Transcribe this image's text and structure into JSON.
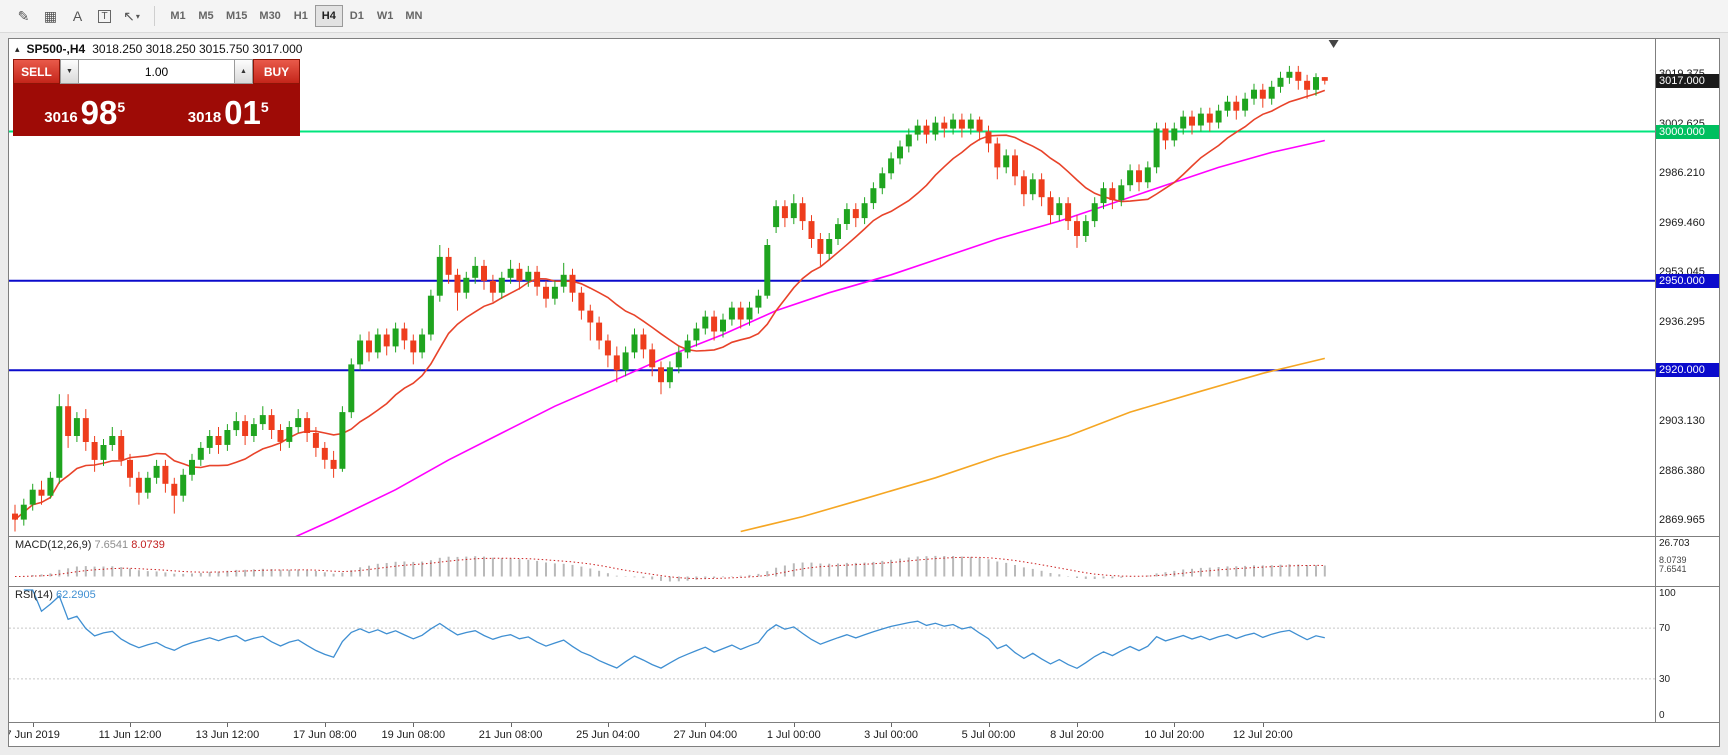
{
  "toolbar": {
    "icons": [
      {
        "name": "chart-pencil-icon",
        "glyph": "✎"
      },
      {
        "name": "grid-icon",
        "glyph": "▦"
      },
      {
        "name": "text-label-icon",
        "glyph": "A"
      },
      {
        "name": "text-box-icon",
        "glyph": "T",
        "boxed": true
      },
      {
        "name": "cursor-tool-icon",
        "glyph": "↖",
        "caret": "▾"
      }
    ],
    "timeframes": [
      "M1",
      "M5",
      "M15",
      "M30",
      "H1",
      "H4",
      "D1",
      "W1",
      "MN"
    ],
    "active_timeframe": "H4"
  },
  "chart_header": {
    "marker": "▴",
    "symbol_tf": "SP500-,H4",
    "ohlc": "3018.250 3018.250 3015.750 3017.000"
  },
  "trade_panel": {
    "sell_label": "SELL",
    "buy_label": "BUY",
    "volume": "1.00",
    "spinner_down": "▼",
    "spinner_up": "▲",
    "bid": {
      "prefix": "3016",
      "big": "98",
      "sup": "5"
    },
    "ask": {
      "prefix": "3018",
      "big": "01",
      "sup": "5"
    }
  },
  "macd_label": {
    "name": "MACD(12,26,9)",
    "value_main": "7.6541",
    "value_signal": "8.0739"
  },
  "rsi_label": {
    "name": "RSI(14)",
    "value": "62.2905"
  },
  "chart_data": {
    "type": "candlestick",
    "symbol": "SP500-",
    "timeframe": "H4",
    "current_ohlc": {
      "open": "3018.250",
      "high": "3018.250",
      "low": "3015.750",
      "close": "3017.000"
    },
    "price_range": {
      "top": 3031,
      "bottom": 2864.5
    },
    "price_ticks": [
      3019.375,
      3002.625,
      2986.21,
      2969.46,
      2953.045,
      2936.295,
      2903.13,
      2886.38,
      2869.965
    ],
    "price_badges": [
      {
        "price": 3017.0,
        "label": "3017.000",
        "color": "#1a1a1a"
      },
      {
        "price": 3000.0,
        "label": "3000.000",
        "color": "#00bf5f"
      },
      {
        "price": 2950.0,
        "label": "2950.000",
        "color": "#0b0bcc"
      },
      {
        "price": 2920.0,
        "label": "2920.000",
        "color": "#0b0bcc"
      }
    ],
    "levels": [
      {
        "price": 3000.0,
        "color": "#00e57d"
      },
      {
        "price": 2950.0,
        "color": "#0b0bcc"
      },
      {
        "price": 2920.0,
        "color": "#0b0bcc"
      }
    ],
    "colors": {
      "up": "#1fa41f",
      "down": "#ee3d1d",
      "ma_fast": "#e8432a",
      "macd_hist": "#b9b9b9",
      "macd_signal": "#cc2222",
      "rsi": "#3f8fd2"
    },
    "ma_fast_period": 13,
    "overlays": [
      {
        "name": "ma-slow-magenta",
        "color": "#ff00ff",
        "points": [
          [
            30,
            2862
          ],
          [
            36,
            2870
          ],
          [
            43,
            2880
          ],
          [
            49,
            2890
          ],
          [
            55,
            2899
          ],
          [
            61,
            2908
          ],
          [
            68,
            2917
          ],
          [
            74,
            2925
          ],
          [
            80,
            2932
          ],
          [
            86,
            2940
          ],
          [
            92,
            2946
          ],
          [
            99,
            2952
          ],
          [
            105,
            2958
          ],
          [
            111,
            2964
          ],
          [
            118,
            2970
          ],
          [
            124,
            2976
          ],
          [
            130,
            2982
          ],
          [
            136,
            2988
          ],
          [
            142,
            2993
          ],
          [
            148,
            2997
          ]
        ]
      },
      {
        "name": "ma-long-orange",
        "color": "#f5a623",
        "points": [
          [
            82,
            2866
          ],
          [
            89,
            2871
          ],
          [
            96,
            2877
          ],
          [
            104,
            2884
          ],
          [
            111,
            2891
          ],
          [
            119,
            2898
          ],
          [
            126,
            2906
          ],
          [
            134,
            2913
          ],
          [
            141,
            2919
          ],
          [
            148,
            2924
          ]
        ]
      }
    ],
    "macd": {
      "params": [
        12,
        26,
        9
      ],
      "axis_max_label": "26.703",
      "value_labels": [
        "8.0739",
        "7.6541"
      ],
      "y_range": [
        -6,
        28
      ]
    },
    "rsi": {
      "period": 14,
      "levels": [
        70,
        30
      ],
      "axis_labels": [
        100,
        70,
        30,
        0
      ]
    },
    "time_labels": [
      {
        "i": 2,
        "text": "7 Jun 2019"
      },
      {
        "i": 13,
        "text": "11 Jun 12:00"
      },
      {
        "i": 24,
        "text": "13 Jun 12:00"
      },
      {
        "i": 35,
        "text": "17 Jun 08:00"
      },
      {
        "i": 45,
        "text": "19 Jun 08:00"
      },
      {
        "i": 56,
        "text": "21 Jun 08:00"
      },
      {
        "i": 67,
        "text": "25 Jun 04:00"
      },
      {
        "i": 78,
        "text": "27 Jun 04:00"
      },
      {
        "i": 88,
        "text": "1 Jul 00:00"
      },
      {
        "i": 99,
        "text": "3 Jul 00:00"
      },
      {
        "i": 110,
        "text": "5 Jul 00:00"
      },
      {
        "i": 120,
        "text": "8 Jul 20:00"
      },
      {
        "i": 131,
        "text": "10 Jul 20:00"
      },
      {
        "i": 141,
        "text": "12 Jul 20:00"
      }
    ],
    "candles": [
      [
        2872,
        2875,
        2866,
        2870
      ],
      [
        2870,
        2877,
        2868,
        2875
      ],
      [
        2875,
        2882,
        2873,
        2880
      ],
      [
        2880,
        2883,
        2875,
        2878
      ],
      [
        2878,
        2886,
        2877,
        2884
      ],
      [
        2884,
        2912,
        2882,
        2908
      ],
      [
        2908,
        2912,
        2894,
        2898
      ],
      [
        2898,
        2906,
        2896,
        2904
      ],
      [
        2904,
        2907,
        2893,
        2896
      ],
      [
        2896,
        2898,
        2886,
        2890
      ],
      [
        2890,
        2897,
        2888,
        2895
      ],
      [
        2895,
        2901,
        2893,
        2898
      ],
      [
        2898,
        2900,
        2888,
        2890
      ],
      [
        2890,
        2892,
        2881,
        2884
      ],
      [
        2884,
        2886,
        2875,
        2879
      ],
      [
        2879,
        2886,
        2877,
        2884
      ],
      [
        2884,
        2890,
        2882,
        2888
      ],
      [
        2888,
        2890,
        2879,
        2882
      ],
      [
        2882,
        2884,
        2872,
        2878
      ],
      [
        2878,
        2887,
        2876,
        2885
      ],
      [
        2885,
        2892,
        2883,
        2890
      ],
      [
        2890,
        2896,
        2888,
        2894
      ],
      [
        2894,
        2900,
        2892,
        2898
      ],
      [
        2898,
        2901,
        2892,
        2895
      ],
      [
        2895,
        2902,
        2893,
        2900
      ],
      [
        2900,
        2906,
        2898,
        2903
      ],
      [
        2903,
        2905,
        2895,
        2898
      ],
      [
        2898,
        2904,
        2896,
        2902
      ],
      [
        2902,
        2908,
        2900,
        2905
      ],
      [
        2905,
        2907,
        2897,
        2900
      ],
      [
        2900,
        2902,
        2893,
        2896
      ],
      [
        2896,
        2903,
        2894,
        2901
      ],
      [
        2901,
        2907,
        2899,
        2904
      ],
      [
        2904,
        2906,
        2896,
        2899
      ],
      [
        2899,
        2901,
        2891,
        2894
      ],
      [
        2894,
        2896,
        2887,
        2890
      ],
      [
        2890,
        2893,
        2884,
        2887
      ],
      [
        2887,
        2908,
        2886,
        2906
      ],
      [
        2906,
        2924,
        2904,
        2922
      ],
      [
        2922,
        2932,
        2920,
        2930
      ],
      [
        2930,
        2933,
        2923,
        2926
      ],
      [
        2926,
        2934,
        2924,
        2932
      ],
      [
        2932,
        2934,
        2925,
        2928
      ],
      [
        2928,
        2936,
        2926,
        2934
      ],
      [
        2934,
        2936,
        2927,
        2930
      ],
      [
        2930,
        2932,
        2922,
        2926
      ],
      [
        2926,
        2934,
        2924,
        2932
      ],
      [
        2932,
        2947,
        2930,
        2945
      ],
      [
        2945,
        2962,
        2943,
        2958
      ],
      [
        2958,
        2961,
        2949,
        2952
      ],
      [
        2952,
        2954,
        2940,
        2946
      ],
      [
        2946,
        2953,
        2944,
        2951
      ],
      [
        2951,
        2958,
        2949,
        2955
      ],
      [
        2955,
        2957,
        2947,
        2950
      ],
      [
        2950,
        2952,
        2943,
        2946
      ],
      [
        2946,
        2953,
        2944,
        2951
      ],
      [
        2951,
        2957,
        2949,
        2954
      ],
      [
        2954,
        2956,
        2947,
        2950
      ],
      [
        2950,
        2955,
        2948,
        2953
      ],
      [
        2953,
        2955,
        2945,
        2948
      ],
      [
        2948,
        2950,
        2941,
        2944
      ],
      [
        2944,
        2950,
        2942,
        2948
      ],
      [
        2948,
        2956,
        2946,
        2952
      ],
      [
        2952,
        2954,
        2943,
        2946
      ],
      [
        2946,
        2948,
        2937,
        2940
      ],
      [
        2940,
        2942,
        2930,
        2936
      ],
      [
        2936,
        2938,
        2927,
        2930
      ],
      [
        2930,
        2932,
        2921,
        2925
      ],
      [
        2925,
        2928,
        2916,
        2920
      ],
      [
        2920,
        2928,
        2918,
        2926
      ],
      [
        2926,
        2934,
        2924,
        2932
      ],
      [
        2932,
        2934,
        2924,
        2927
      ],
      [
        2927,
        2929,
        2918,
        2921
      ],
      [
        2921,
        2923,
        2912,
        2916
      ],
      [
        2916,
        2923,
        2914,
        2921
      ],
      [
        2921,
        2928,
        2919,
        2926
      ],
      [
        2926,
        2932,
        2924,
        2930
      ],
      [
        2930,
        2936,
        2928,
        2934
      ],
      [
        2934,
        2940,
        2932,
        2938
      ],
      [
        2938,
        2940,
        2930,
        2933
      ],
      [
        2933,
        2939,
        2931,
        2937
      ],
      [
        2937,
        2943,
        2935,
        2941
      ],
      [
        2941,
        2943,
        2934,
        2937
      ],
      [
        2937,
        2943,
        2935,
        2941
      ],
      [
        2941,
        2947,
        2939,
        2945
      ],
      [
        2945,
        2964,
        2944,
        2962
      ],
      [
        2968,
        2977,
        2966,
        2975
      ],
      [
        2975,
        2977,
        2968,
        2971
      ],
      [
        2971,
        2979,
        2969,
        2976
      ],
      [
        2976,
        2978,
        2967,
        2970
      ],
      [
        2970,
        2972,
        2961,
        2964
      ],
      [
        2964,
        2966,
        2955,
        2959
      ],
      [
        2959,
        2966,
        2957,
        2964
      ],
      [
        2964,
        2971,
        2962,
        2969
      ],
      [
        2969,
        2976,
        2967,
        2974
      ],
      [
        2974,
        2976,
        2968,
        2971
      ],
      [
        2971,
        2978,
        2969,
        2976
      ],
      [
        2976,
        2983,
        2974,
        2981
      ],
      [
        2981,
        2988,
        2979,
        2986
      ],
      [
        2986,
        2993,
        2984,
        2991
      ],
      [
        2991,
        2997,
        2989,
        2995
      ],
      [
        2995,
        3001,
        2993,
        2999
      ],
      [
        2999,
        3004,
        2997,
        3002
      ],
      [
        3002,
        3004,
        2996,
        2999
      ],
      [
        2999,
        3005,
        2997,
        3003
      ],
      [
        3003,
        3005,
        2998,
        3001
      ],
      [
        3001,
        3006,
        2999,
        3004
      ],
      [
        3004,
        3006,
        2998,
        3001
      ],
      [
        3001,
        3006,
        2999,
        3004
      ],
      [
        3004,
        3005,
        2997,
        3000
      ],
      [
        3000,
        3002,
        2993,
        2996
      ],
      [
        2996,
        2998,
        2984,
        2988
      ],
      [
        2988,
        2994,
        2986,
        2992
      ],
      [
        2992,
        2994,
        2982,
        2985
      ],
      [
        2985,
        2987,
        2975,
        2979
      ],
      [
        2979,
        2986,
        2977,
        2984
      ],
      [
        2984,
        2986,
        2975,
        2978
      ],
      [
        2978,
        2980,
        2969,
        2972
      ],
      [
        2972,
        2978,
        2970,
        2976
      ],
      [
        2976,
        2978,
        2967,
        2970
      ],
      [
        2970,
        2972,
        2961,
        2965
      ],
      [
        2965,
        2972,
        2963,
        2970
      ],
      [
        2970,
        2978,
        2968,
        2976
      ],
      [
        2976,
        2983,
        2974,
        2981
      ],
      [
        2981,
        2983,
        2974,
        2977
      ],
      [
        2977,
        2984,
        2975,
        2982
      ],
      [
        2982,
        2989,
        2980,
        2987
      ],
      [
        2987,
        2989,
        2980,
        2983
      ],
      [
        2983,
        2990,
        2981,
        2988
      ],
      [
        2988,
        3003,
        2986,
        3001
      ],
      [
        3001,
        3003,
        2994,
        2997
      ],
      [
        2997,
        3003,
        2995,
        3001
      ],
      [
        3001,
        3007,
        2999,
        3005
      ],
      [
        3005,
        3007,
        2999,
        3002
      ],
      [
        3002,
        3008,
        3000,
        3006
      ],
      [
        3006,
        3008,
        3000,
        3003
      ],
      [
        3003,
        3009,
        3001,
        3007
      ],
      [
        3007,
        3012,
        3005,
        3010
      ],
      [
        3010,
        3012,
        3004,
        3007
      ],
      [
        3007,
        3013,
        3005,
        3011
      ],
      [
        3011,
        3016,
        3009,
        3014
      ],
      [
        3014,
        3016,
        3008,
        3011
      ],
      [
        3011,
        3017,
        3009,
        3015
      ],
      [
        3015,
        3020,
        3013,
        3018
      ],
      [
        3018,
        3022,
        3016,
        3020
      ],
      [
        3020,
        3022,
        3014,
        3017
      ],
      [
        3017,
        3019,
        3011,
        3014
      ],
      [
        3014,
        3019.5,
        3012,
        3018.25
      ],
      [
        3018.25,
        3018.25,
        3015.75,
        3017
      ]
    ]
  }
}
